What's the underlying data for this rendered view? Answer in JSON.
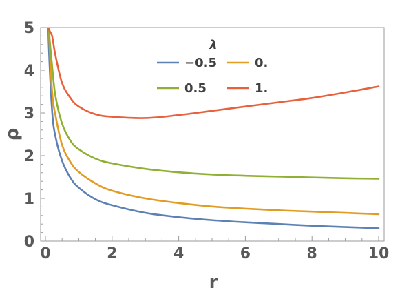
{
  "chart_data": {
    "type": "line",
    "xlabel": "r",
    "ylabel": "ρ",
    "xlim": [
      0,
      10
    ],
    "ylim": [
      0,
      5
    ],
    "xticks": [
      "0",
      "2",
      "4",
      "6",
      "8",
      "10"
    ],
    "yticks": [
      "0",
      "1",
      "2",
      "3",
      "4",
      "5"
    ],
    "grid": false,
    "legend": {
      "title": "λ",
      "placement": "top-center"
    },
    "x": [
      0.1,
      0.2,
      0.3,
      0.5,
      0.75,
      1,
      1.5,
      2,
      3,
      4,
      5,
      6,
      7,
      8,
      9,
      10
    ],
    "series": [
      {
        "name": "−0.5",
        "color": "#5E81B5",
        "values": [
          4.6,
          3.05,
          2.45,
          1.88,
          1.48,
          1.25,
          0.98,
          0.84,
          0.66,
          0.56,
          0.49,
          0.44,
          0.4,
          0.36,
          0.33,
          0.3
        ]
      },
      {
        "name": "0.",
        "color": "#E19C24",
        "values": [
          5.0,
          3.5,
          2.95,
          2.25,
          1.85,
          1.62,
          1.35,
          1.18,
          1.0,
          0.89,
          0.81,
          0.76,
          0.72,
          0.69,
          0.66,
          0.63
        ]
      },
      {
        "name": "0.5",
        "color": "#8FB032",
        "values": [
          5.0,
          4.1,
          3.4,
          2.75,
          2.35,
          2.15,
          1.93,
          1.82,
          1.69,
          1.61,
          1.56,
          1.53,
          1.51,
          1.49,
          1.47,
          1.46
        ]
      },
      {
        "name": "1.",
        "color": "#E8613C",
        "values": [
          5.0,
          4.8,
          4.35,
          3.7,
          3.35,
          3.15,
          2.97,
          2.91,
          2.88,
          2.95,
          3.05,
          3.15,
          3.25,
          3.35,
          3.48,
          3.62
        ]
      }
    ]
  }
}
